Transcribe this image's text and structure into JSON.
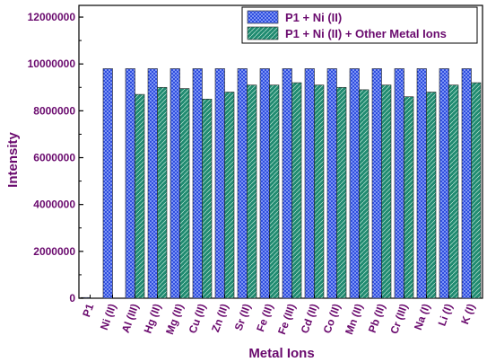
{
  "chart_data": {
    "type": "bar",
    "xlabel": "Metal Ions",
    "ylabel": "Intensity",
    "ylim": [
      0,
      12500000
    ],
    "yticks": [
      0,
      2000000,
      4000000,
      6000000,
      8000000,
      10000000,
      12000000
    ],
    "ytick_labels": [
      "0",
      "2000000",
      "4000000",
      "6000000",
      "8000000",
      "10000000",
      "12000000"
    ],
    "categories": [
      "P1",
      "Ni (II)",
      "Al (III)",
      "Hg (II)",
      "Mg (II)",
      "Cu (II)",
      "Zn (II)",
      "Sr (II)",
      "Fe (II)",
      "Fe (III)",
      "Cd (II)",
      "Co (II)",
      "Mn (II)",
      "Pb (II)",
      "Cr (III)",
      "Na (I)",
      "Li (I)",
      "K (I)"
    ],
    "series": [
      {
        "name": "P1 + Ni (II)",
        "color": "#1e3fd9",
        "values": [
          30000,
          9800000,
          9800000,
          9800000,
          9800000,
          9800000,
          9800000,
          9800000,
          9800000,
          9800000,
          9800000,
          9800000,
          9800000,
          9800000,
          9800000,
          9800000,
          9800000,
          9800000
        ]
      },
      {
        "name": "P1 + Ni (II) + Other Metal Ions",
        "color": "#1f8a70",
        "values": [
          0,
          0,
          8700000,
          9000000,
          8950000,
          8500000,
          8800000,
          9100000,
          9100000,
          9200000,
          9100000,
          9000000,
          8900000,
          9100000,
          8600000,
          8800000,
          9100000,
          9200000
        ]
      }
    ],
    "legend_position": "top-right",
    "grid": false
  }
}
